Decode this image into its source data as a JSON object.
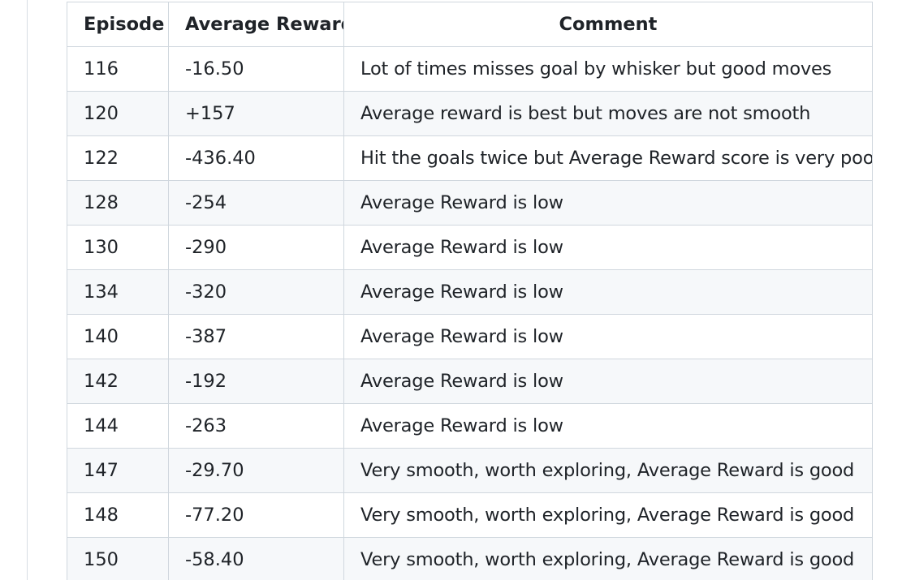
{
  "table": {
    "headers": [
      "Episode",
      "Average Reward",
      "Comment"
    ],
    "rows": [
      [
        "116",
        "-16.50",
        "Lot of times misses goal by whisker but good moves"
      ],
      [
        "120",
        "+157",
        "Average reward is best but moves are not smooth"
      ],
      [
        "122",
        "-436.40",
        "Hit the goals twice but Average Reward score is very poor"
      ],
      [
        "128",
        "-254",
        "Average Reward is low"
      ],
      [
        "130",
        "-290",
        "Average Reward is low"
      ],
      [
        "134",
        "-320",
        "Average Reward is low"
      ],
      [
        "140",
        "-387",
        "Average Reward is low"
      ],
      [
        "142",
        "-192",
        "Average Reward is low"
      ],
      [
        "144",
        "-263",
        "Average Reward is low"
      ],
      [
        "147",
        "-29.70",
        "Very smooth, worth exploring, Average Reward is good"
      ],
      [
        "148",
        "-77.20",
        "Very smooth, worth exploring, Average Reward is good"
      ],
      [
        "150",
        "-58.40",
        "Very smooth, worth exploring, Average Reward is good"
      ]
    ]
  },
  "colors": {
    "border": "#d0d7de",
    "stripe": "#f6f8fa",
    "text": "#1f2328"
  }
}
